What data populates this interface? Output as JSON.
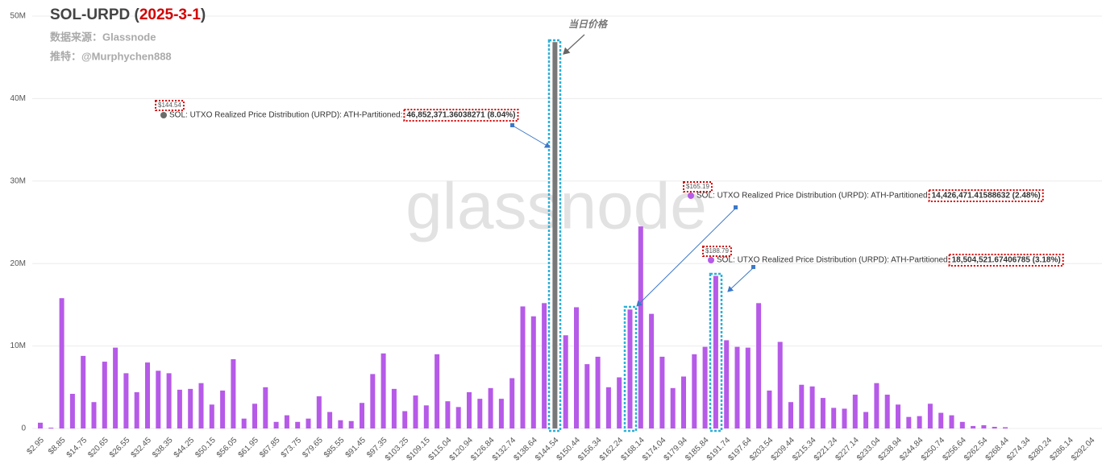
{
  "chart_data": {
    "type": "bar",
    "title_parts": [
      "SOL-URPD (",
      "2025-3-1",
      ")"
    ],
    "subtitles": [
      "数据来源：Glassnode",
      "推特：@Murphychen888"
    ],
    "watermark": "glassnode",
    "annotation": "当日价格",
    "categories": [
      "$2.95",
      null,
      "$8.85",
      null,
      "$14.75",
      null,
      "$20.65",
      null,
      "$26.55",
      null,
      "$32.45",
      null,
      "$38.35",
      null,
      "$44.25",
      null,
      "$50.15",
      null,
      "$56.05",
      null,
      "$61.95",
      null,
      "$67.85",
      null,
      "$73.75",
      null,
      "$79.65",
      null,
      "$85.55",
      null,
      "$91.45",
      null,
      "$97.35",
      null,
      "$103.25",
      null,
      "$109.15",
      null,
      "$115.04",
      null,
      "$120.94",
      null,
      "$126.84",
      null,
      "$132.74",
      null,
      "$138.64",
      null,
      "$144.54",
      null,
      "$150.44",
      null,
      "$156.34",
      null,
      "$162.24",
      null,
      "$168.14",
      null,
      "$174.04",
      null,
      "$179.94",
      null,
      "$185.84",
      null,
      "$191.74",
      null,
      "$197.64",
      null,
      "$203.54",
      null,
      "$209.44",
      null,
      "$215.34",
      null,
      "$221.24",
      null,
      "$227.14",
      null,
      "$233.04",
      null,
      "$238.94",
      null,
      "$244.84",
      null,
      "$250.74",
      null,
      "$256.64",
      null,
      "$262.54",
      null,
      "$268.44",
      null,
      "$274.34",
      null,
      "$280.24",
      null,
      "$286.14",
      null,
      "$292.04"
    ],
    "values": [
      700000,
      100000,
      15800000,
      4200000,
      8800000,
      3200000,
      8100000,
      9800000,
      6700000,
      4400000,
      8000000,
      7000000,
      6700000,
      4700000,
      4800000,
      5500000,
      2900000,
      4600000,
      8400000,
      1200000,
      3000000,
      5000000,
      800000,
      1600000,
      800000,
      1200000,
      3900000,
      2000000,
      1000000,
      900000,
      3100000,
      6600000,
      9100000,
      4800000,
      2100000,
      4000000,
      2800000,
      9000000,
      3300000,
      2600000,
      4400000,
      3600000,
      4900000,
      3600000,
      6100000,
      14800000,
      13600000,
      15200000,
      46852371.36038271,
      11300000,
      14700000,
      7800000,
      8700000,
      5000000,
      6200000,
      14426471.41588632,
      24500000,
      13900000,
      8700000,
      4900000,
      6300000,
      9000000,
      9900000,
      18504521.67406785,
      10700000,
      9900000,
      9800000,
      15200000,
      4600000,
      10500000,
      3200000,
      5300000,
      5100000,
      3700000,
      2500000,
      2400000,
      4100000,
      2000000,
      5500000,
      4100000,
      2900000,
      1400000,
      1500000,
      3000000,
      1900000,
      1600000,
      800000,
      300000,
      400000,
      200000,
      150000,
      0,
      0,
      0,
      0,
      0,
      0,
      0,
      0
    ],
    "color": "#b65ae8",
    "highlight_category": "$144.54",
    "highlight_color": "#787878",
    "ylim": [
      0,
      50000000
    ],
    "yticks": [
      0,
      {
        "value": 10000000,
        "label": "10M"
      },
      {
        "value": 20000000,
        "label": "20M"
      },
      {
        "value": 30000000,
        "label": "30M"
      },
      {
        "value": 40000000,
        "label": "40M"
      },
      {
        "value": 50000000,
        "label": "50M"
      }
    ],
    "grid": true,
    "tooltips": [
      {
        "price": "$144.54",
        "series": "SOL: UTXO Realized Price Distribution (URPD): ATH-Partitioned:",
        "value": "46,852,371.36038271 (8.04%)",
        "color": "#6b6b6b"
      },
      {
        "price": "$165.19",
        "series": "SOL: UTXO Realized Price Distribution (URPD): ATH-Partitioned",
        "value": "14,426,471.41588632 (2.48%)",
        "color": "#b65ae8"
      },
      {
        "price": "$188.79",
        "series": "SOL: UTXO Realized Price Distribution (URPD): ATH-Partitioned",
        "value": "18,504,521.67406785 (3.18%)",
        "color": "#b65ae8"
      }
    ]
  }
}
